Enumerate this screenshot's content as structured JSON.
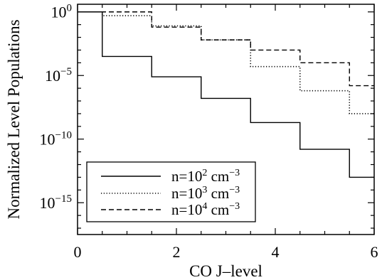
{
  "chart_data": {
    "type": "line",
    "step": true,
    "xlabel": "CO J–level",
    "ylabel": "Normalized Level Populations",
    "xlim": [
      0,
      6
    ],
    "ylim_log10": [
      -17.5,
      0.6
    ],
    "yscale": "log",
    "grid": false,
    "legend_position": "bottom-left",
    "x_ticks": [
      0,
      2,
      4,
      6
    ],
    "x_tick_labels": [
      "0",
      "2",
      "4",
      "6"
    ],
    "y_ticks_log10": [
      0,
      -5,
      -10,
      -15
    ],
    "y_tick_labels": [
      {
        "base": "10",
        "exp": "0"
      },
      {
        "base": "10",
        "exp": "−5"
      },
      {
        "base": "10",
        "exp": "−10"
      },
      {
        "base": "10",
        "exp": "−15"
      }
    ],
    "x": [
      0,
      1,
      2,
      3,
      4,
      5,
      6
    ],
    "series": [
      {
        "label": {
          "prefix": "n=10",
          "exp": "2",
          "unit": " cm",
          "unit_exp": "−3"
        },
        "style": "solid",
        "log10_values": [
          0,
          -3.5,
          -5.1,
          -6.8,
          -8.7,
          -10.8,
          -13.0
        ]
      },
      {
        "label": {
          "prefix": "n=10",
          "exp": "3",
          "unit": " cm",
          "unit_exp": "−3"
        },
        "style": "dotted",
        "log10_values": [
          0,
          -0.3,
          -1.1,
          -2.2,
          -4.3,
          -6.2,
          -8.0
        ]
      },
      {
        "label": {
          "prefix": "n=10",
          "exp": "4",
          "unit": " cm",
          "unit_exp": "−3"
        },
        "style": "dashed",
        "log10_values": [
          0,
          0,
          -1.2,
          -2.2,
          -3.0,
          -4.0,
          -5.8
        ]
      }
    ]
  }
}
